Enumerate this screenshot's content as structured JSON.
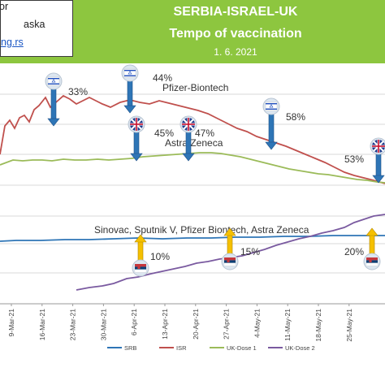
{
  "header": {
    "title_line1": "SERBIA-ISRAEL-UK",
    "title_line2": "Tempo of vaccination",
    "date": "1. 6. 2021",
    "info_line1": "or",
    "info_line2": "aska",
    "info_link": "ng.rs"
  },
  "colors": {
    "header_bg": "#8dc63f",
    "srb": "#2e75b6",
    "isr": "#c0504d",
    "uk_dose1": "#9bbb59",
    "uk_dose2": "#7a5aa0",
    "arrow_blue": "#2e75b6",
    "arrow_yellow": "#f5c000"
  },
  "chart_data": {
    "type": "line",
    "categories": [
      "9-Mar-21",
      "16-Mar-21",
      "23-Mar-21",
      "30-Mar-21",
      "6-Apr-21",
      "13-Apr-21",
      "20-Apr-21",
      "27-Apr-21",
      "4-May-21",
      "11-May-21",
      "18-May-21",
      "25-May-21"
    ],
    "series": [
      {
        "name": "SRB",
        "color": "#2e75b6",
        "values": [
          16.5,
          16.8,
          16.8,
          17.2,
          17.3,
          17.2,
          17.3,
          17.5,
          17.6,
          17.8,
          17.9,
          17.9
        ]
      },
      {
        "name": "ISR",
        "color": "#c0504d",
        "values": [
          26.7,
          28.4,
          28.3,
          28.3,
          28.2,
          27.4,
          25.9,
          24.5,
          23.2,
          22.2,
          21.0,
          20.3
        ]
      },
      {
        "name": "UK-Dose 1",
        "color": "#9bbb59",
        "values": [
          22.0,
          22.3,
          22.5,
          22.5,
          22.7,
          22.9,
          22.6,
          22.1,
          21.5,
          20.9,
          20.5,
          20.1
        ]
      },
      {
        "name": "UK-Dose 2",
        "color": "#7a5aa0",
        "values": [
          null,
          null,
          11.0,
          12.0,
          12.6,
          13.5,
          14.2,
          15.0,
          16.3,
          17.3,
          18.3,
          19.2
        ]
      }
    ],
    "annotations": [
      {
        "text": "33%",
        "x": "16-Mar-21"
      },
      {
        "text": "44%",
        "x": "30-Mar-21"
      },
      {
        "text": "Pfizer-Biontech",
        "x": "6-Apr-21"
      },
      {
        "text": "45%",
        "x": "30-Mar-21"
      },
      {
        "text": "47%",
        "x": "13-Apr-21"
      },
      {
        "text": "Astra Zeneca",
        "x": "13-Apr-21"
      },
      {
        "text": "58%",
        "x": "27-Apr-21"
      },
      {
        "text": "53%",
        "x": "18-May-21"
      },
      {
        "text": "Sinovac, Sputnik V, Pfizer Biontech, Astra Zeneca",
        "x": "20-Apr-21"
      },
      {
        "text": "10%",
        "x": "30-Mar-21"
      },
      {
        "text": "15%",
        "x": "20-Apr-21"
      },
      {
        "text": "20%",
        "x": "18-May-21"
      }
    ],
    "markers": [
      {
        "flag": "israel-flag",
        "arrow": "down",
        "x": "16-Mar-21"
      },
      {
        "flag": "israel-flag",
        "arrow": "down",
        "x": "30-Mar-21"
      },
      {
        "flag": "uk-flag",
        "arrow": "down",
        "x": "30-Mar-21"
      },
      {
        "flag": "uk-flag",
        "arrow": "down",
        "x": "13-Apr-21"
      },
      {
        "flag": "israel-flag",
        "arrow": "down",
        "x": "27-Apr-21"
      },
      {
        "flag": "uk-flag",
        "arrow": "down",
        "x": "25-May-21"
      },
      {
        "flag": "serbia-flag",
        "arrow": "up",
        "x": "30-Mar-21"
      },
      {
        "flag": "serbia-flag",
        "arrow": "up",
        "x": "20-Apr-21"
      },
      {
        "flag": "serbia-flag",
        "arrow": "up",
        "x": "25-May-21"
      }
    ],
    "legend_position": "bottom",
    "grid": true,
    "xlabel": "",
    "ylabel": ""
  }
}
